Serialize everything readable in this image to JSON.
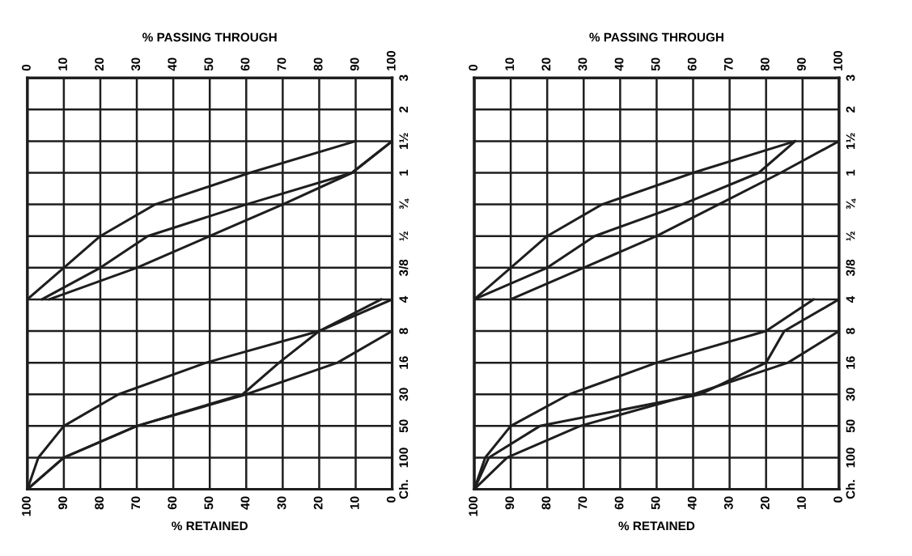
{
  "chart_data": [
    {
      "type": "line",
      "orientation": "horizontal",
      "categories": [
        "3",
        "2",
        "1½",
        "1",
        "¾",
        "½",
        "3/8",
        "4",
        "8",
        "16",
        "30",
        "50",
        "100",
        "Ch."
      ],
      "xlabel": "% RETAINED",
      "xlim": [
        100,
        0
      ],
      "xticks": [
        100,
        90,
        80,
        70,
        60,
        50,
        40,
        30,
        20,
        10,
        0
      ],
      "x2label": "% PASSING THROUGH",
      "x2lim": [
        0,
        100
      ],
      "x2ticks": [
        0,
        10,
        20,
        30,
        40,
        50,
        60,
        70,
        80,
        90,
        100
      ],
      "grid": true,
      "series": [
        {
          "color": "#1e1e1e",
          "axis": "x2",
          "values": [
            null,
            null,
            90,
            61,
            35,
            20,
            10,
            0,
            null,
            null,
            null,
            null,
            null,
            null
          ]
        },
        {
          "color": "#1e1e1e",
          "axis": "x2",
          "values": [
            null,
            null,
            100,
            89,
            60,
            33,
            20,
            4,
            null,
            null,
            null,
            null,
            null,
            null
          ]
        },
        {
          "color": "#1e1e1e",
          "axis": "x2",
          "values": [
            null,
            null,
            100,
            89,
            70,
            50,
            30,
            6,
            null,
            null,
            null,
            null,
            null,
            null
          ]
        },
        {
          "color": "#1e1e1e",
          "axis": "x2",
          "values": [
            null,
            null,
            null,
            null,
            null,
            null,
            null,
            97,
            80,
            49,
            25,
            10,
            3,
            0
          ]
        },
        {
          "color": "#1e1e1e",
          "axis": "x2",
          "values": [
            null,
            null,
            null,
            null,
            null,
            null,
            null,
            100,
            80,
            69,
            59,
            30,
            10,
            0
          ]
        },
        {
          "color": "#1e1e1e",
          "axis": "x2",
          "values": [
            null,
            null,
            null,
            null,
            null,
            null,
            null,
            100,
            100,
            85,
            60,
            30,
            10,
            0
          ]
        }
      ]
    },
    {
      "type": "line",
      "orientation": "horizontal",
      "categories": [
        "3",
        "2",
        "1½",
        "1",
        "¾",
        "½",
        "3/8",
        "4",
        "8",
        "16",
        "30",
        "50",
        "100",
        "Ch."
      ],
      "xlabel": "% RETAINED",
      "xlim": [
        100,
        0
      ],
      "xticks": [
        100,
        90,
        80,
        70,
        60,
        50,
        40,
        30,
        20,
        10,
        0
      ],
      "x2label": "% PASSING THROUGH",
      "x2lim": [
        0,
        100
      ],
      "x2ticks": [
        0,
        10,
        20,
        30,
        40,
        50,
        60,
        70,
        80,
        90,
        100
      ],
      "grid": true,
      "series": [
        {
          "color": "#1e1e1e",
          "axis": "x2",
          "values": [
            null,
            null,
            88,
            60,
            35,
            20,
            10,
            0,
            null,
            null,
            null,
            null,
            null,
            null
          ]
        },
        {
          "color": "#1e1e1e",
          "axis": "x2",
          "values": [
            null,
            null,
            88,
            78,
            57,
            33,
            20,
            0,
            null,
            null,
            null,
            null,
            null,
            null
          ]
        },
        {
          "color": "#1e1e1e",
          "axis": "x2",
          "values": [
            null,
            null,
            100,
            84,
            67,
            50,
            30,
            10,
            null,
            null,
            null,
            null,
            null,
            null
          ]
        },
        {
          "color": "#1e1e1e",
          "axis": "x2",
          "values": [
            null,
            null,
            null,
            null,
            null,
            null,
            null,
            93,
            80,
            50,
            26,
            10,
            3,
            0
          ]
        },
        {
          "color": "#1e1e1e",
          "axis": "x2",
          "values": [
            null,
            null,
            null,
            null,
            null,
            null,
            null,
            100,
            85,
            80,
            62,
            18,
            4,
            0
          ]
        },
        {
          "color": "#1e1e1e",
          "axis": "x2",
          "values": [
            null,
            null,
            null,
            null,
            null,
            null,
            null,
            100,
            100,
            86,
            60,
            29,
            9,
            0
          ]
        }
      ]
    }
  ]
}
